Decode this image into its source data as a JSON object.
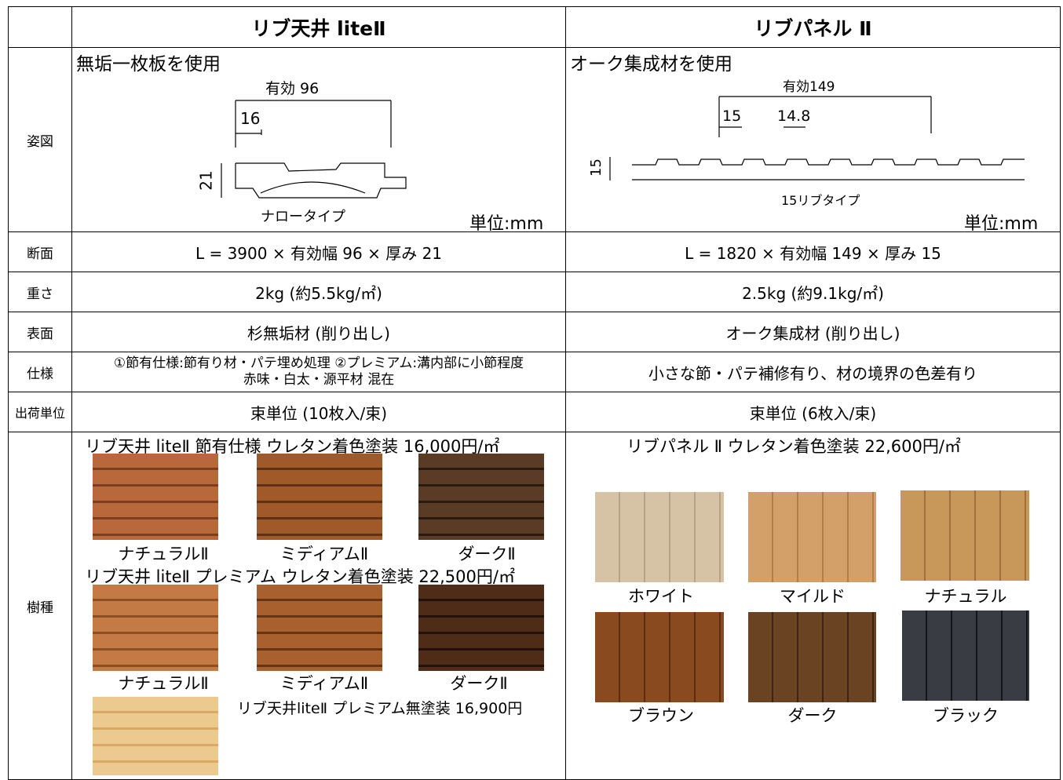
{
  "header": {
    "columns": [
      "リブ天井 liteⅡ",
      "リブパネル Ⅱ"
    ]
  },
  "figure": {
    "label": "姿図",
    "left": {
      "caption": "無垢一枚板を使用",
      "dims": [
        "有効 96",
        "16",
        "21"
      ],
      "type_label": "ナロータイプ",
      "unit": "単位:mm"
    },
    "right": {
      "caption": "オーク集成材を使用",
      "dims": [
        "有効149",
        "15",
        "14.8",
        "15"
      ],
      "type_label": "15リブタイプ",
      "unit": "単位:mm"
    }
  },
  "rows": [
    {
      "label": "断面",
      "left": "L = 3900 × 有効幅 96 × 厚み 21",
      "right": "L = 1820 × 有効幅 149 × 厚み 15"
    },
    {
      "label": "重さ",
      "left": "2kg (約5.5kg/㎡)",
      "right": "2.5kg (約9.1kg/㎡)"
    },
    {
      "label": "表面",
      "left": "杉無垢材 (削り出し)",
      "right": "オーク集成材 (削り出し)"
    },
    {
      "label": "仕様",
      "left": [
        "①節有仕様:節有り材・パテ埋め処理 ②プレミアム:溝内部に小節程度",
        "赤味・白太・源平材 混在"
      ],
      "right": "小さな節・パテ補修有り、材の境界の色差有り"
    },
    {
      "label": "出荷単位",
      "left": "束単位 (10枚入/束)",
      "right": "束単位 (6枚入/束)"
    }
  ],
  "species": {
    "label": "樹種",
    "left": [
      {
        "title": "リブ天井 liteⅡ 節有仕様 ウレタン着色塗装 16,000円/㎡",
        "swatches": [
          "ナチュラルⅡ",
          "ミディアムⅡ",
          "ダークⅡ"
        ]
      },
      {
        "title": "リブ天井 liteⅡ プレミアム ウレタン着色塗装 22,500円/㎡",
        "swatches": [
          "ナチュラルⅡ",
          "ミディアムⅡ",
          "ダークⅡ"
        ]
      },
      {
        "title": "リブ天井liteⅡ プレミアム無塗装 16,900円"
      }
    ],
    "right": {
      "title": "リブパネル Ⅱ ウレタン着色塗装 22,600円/㎡",
      "swatches": [
        "ホワイト",
        "マイルド",
        "ナチュラル",
        "ブラウン",
        "ダーク",
        "ブラック"
      ]
    }
  }
}
